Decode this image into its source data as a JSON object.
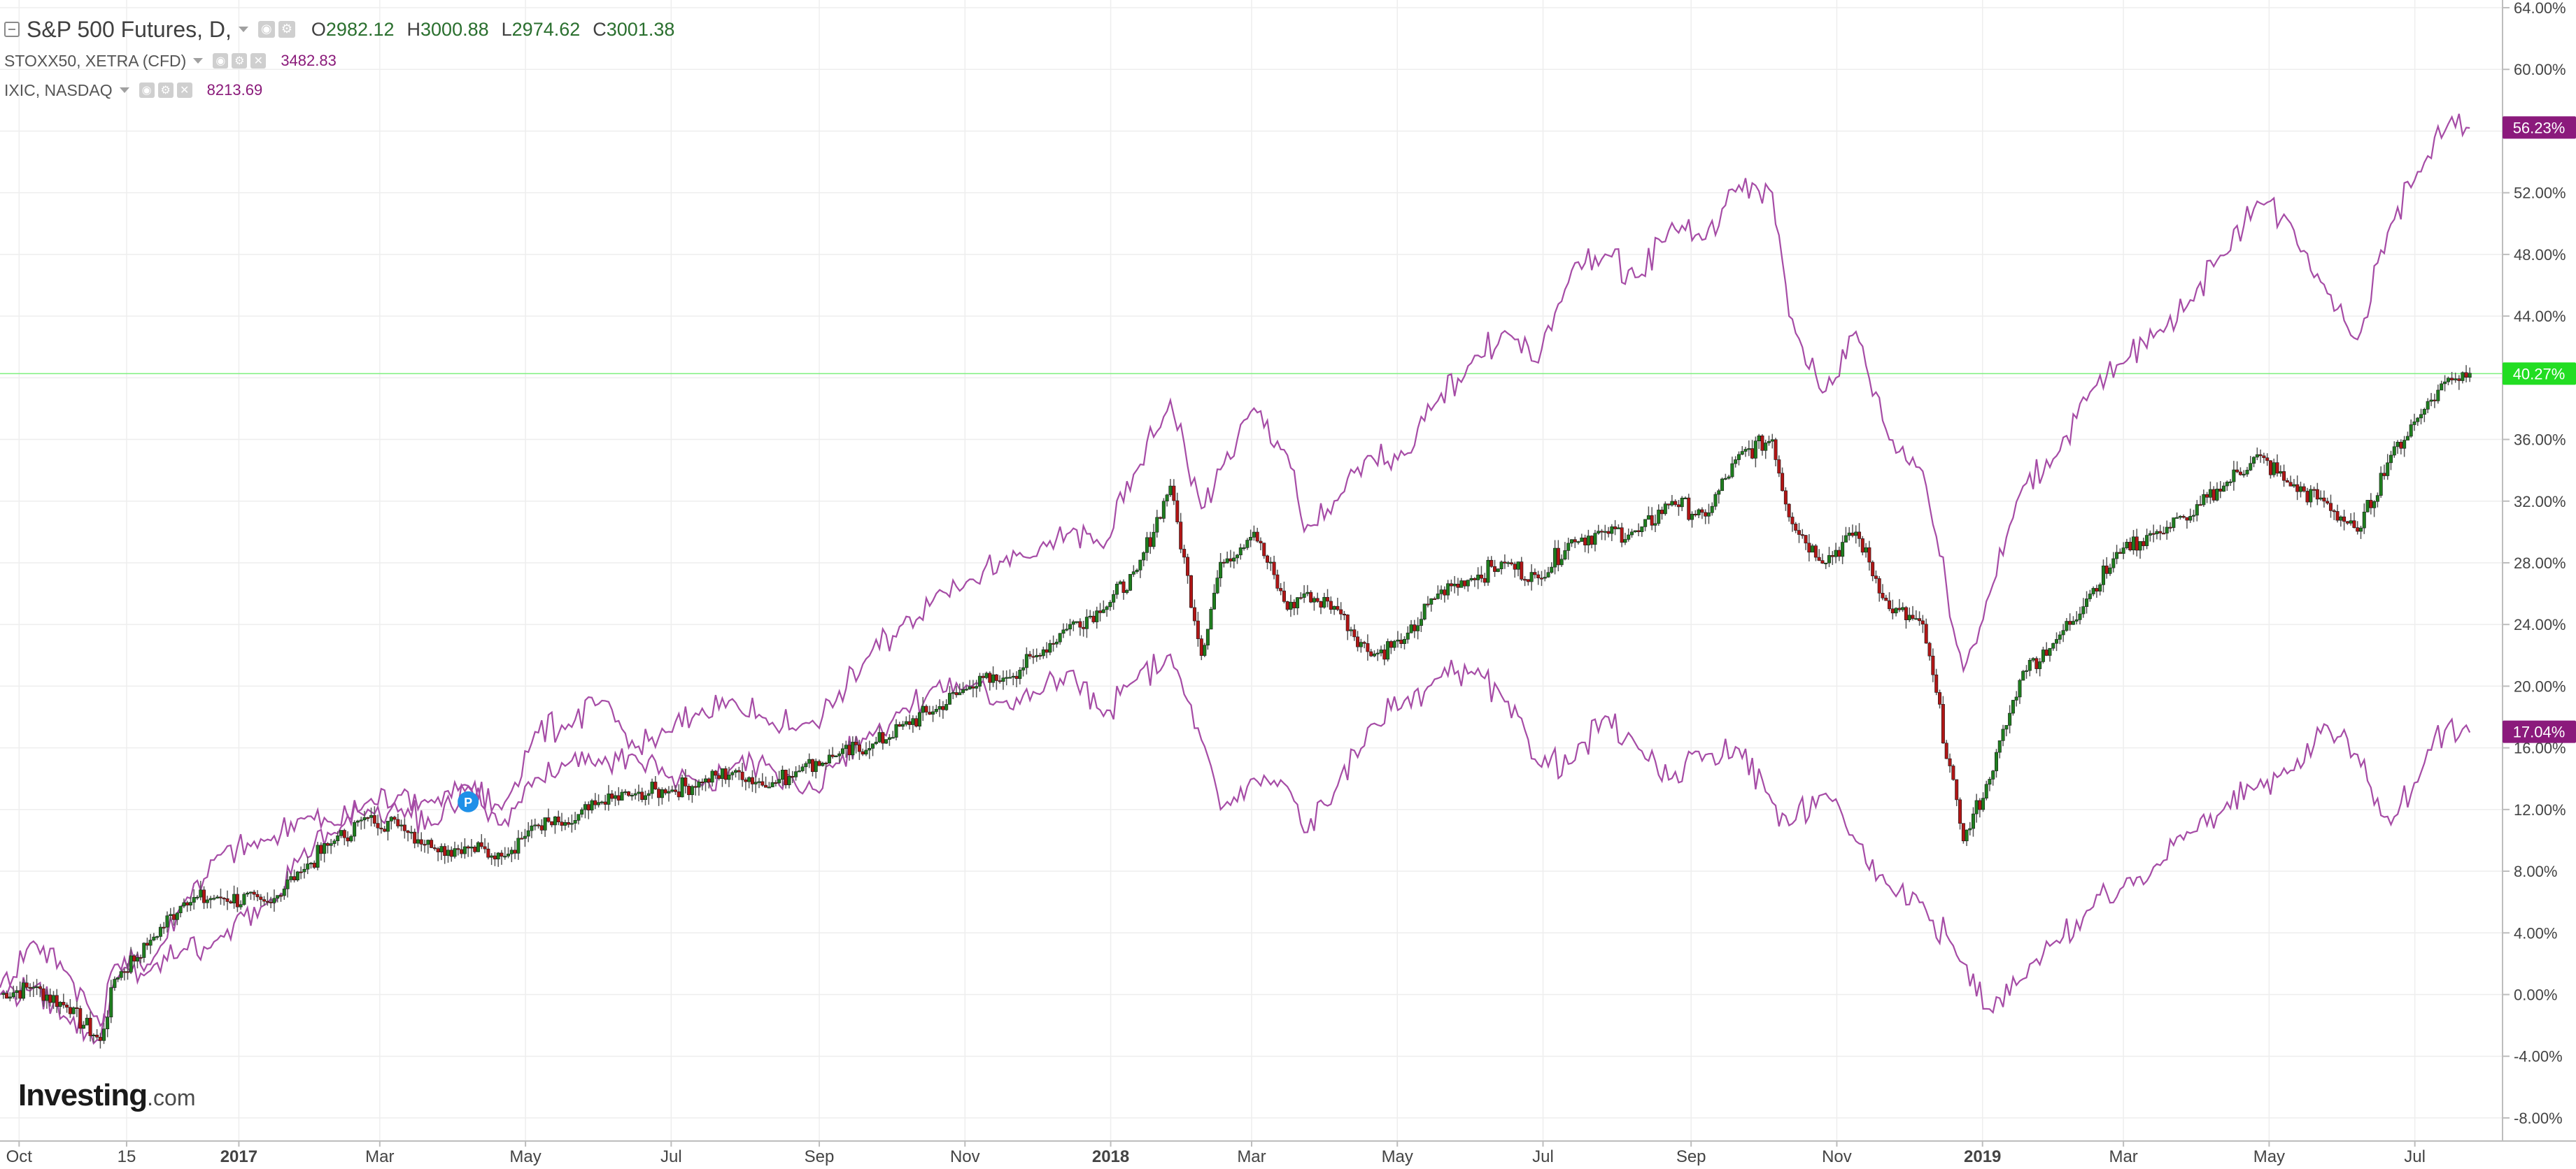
{
  "legend": {
    "main": {
      "symbol": "S&P 500 Futures, D,",
      "o_label": "O",
      "o": "2982.12",
      "h_label": "H",
      "h": "3000.88",
      "l_label": "L",
      "l": "2974.62",
      "c_label": "C",
      "c": "3001.38"
    },
    "compare": [
      {
        "symbol": "STOXX50, XETRA (CFD)",
        "value": "3482.83"
      },
      {
        "symbol": "IXIC, NASDAQ",
        "value": "8213.69"
      }
    ]
  },
  "logo": {
    "brand": "Investing",
    "domain": ".com"
  },
  "colors": {
    "up": "#1e7d1e",
    "down": "#b01515",
    "wick": "#555555",
    "compare_line": "#a64ca6",
    "current_line": "#7ef07e",
    "badge_green": "#22dd22",
    "badge_purple": "#8b1a7c",
    "grid": "#eeeeee",
    "axis_text": "#444444"
  },
  "chart_data": {
    "type": "line",
    "title": "S&P 500 Futures, D,",
    "y_unit": "%",
    "ylim": [
      -9.5,
      64.5
    ],
    "y_ticks": [
      "64.00%",
      "60.00%",
      "56.00%",
      "52.00%",
      "48.00%",
      "44.00%",
      "40.00%",
      "36.00%",
      "32.00%",
      "28.00%",
      "24.00%",
      "20.00%",
      "16.00%",
      "12.00%",
      "8.00%",
      "4.00%",
      "0.00%",
      "-4.00%",
      "-8.00%"
    ],
    "x_range": [
      "2016-09-23",
      "2019-07-26"
    ],
    "x_ticks": [
      {
        "date": "2016-10-01",
        "label": "Oct",
        "bold": false
      },
      {
        "date": "2016-11-15",
        "label": "15",
        "bold": false
      },
      {
        "date": "2017-01-01",
        "label": "2017",
        "bold": true
      },
      {
        "date": "2017-03-01",
        "label": "Mar",
        "bold": false
      },
      {
        "date": "2017-05-01",
        "label": "May",
        "bold": false
      },
      {
        "date": "2017-07-01",
        "label": "Jul",
        "bold": false
      },
      {
        "date": "2017-09-01",
        "label": "Sep",
        "bold": false
      },
      {
        "date": "2017-11-01",
        "label": "Nov",
        "bold": false
      },
      {
        "date": "2018-01-01",
        "label": "2018",
        "bold": true
      },
      {
        "date": "2018-03-01",
        "label": "Mar",
        "bold": false
      },
      {
        "date": "2018-05-01",
        "label": "May",
        "bold": false
      },
      {
        "date": "2018-07-01",
        "label": "Jul",
        "bold": false
      },
      {
        "date": "2018-09-01",
        "label": "Sep",
        "bold": false
      },
      {
        "date": "2018-11-01",
        "label": "Nov",
        "bold": false
      },
      {
        "date": "2019-01-01",
        "label": "2019",
        "bold": true
      },
      {
        "date": "2019-03-01",
        "label": "Mar",
        "bold": false
      },
      {
        "date": "2019-05-01",
        "label": "May",
        "bold": false
      },
      {
        "date": "2019-07-01",
        "label": "Jul",
        "bold": false
      }
    ],
    "grid": true,
    "current_line": {
      "value": 40.27,
      "label": "40.27%"
    },
    "badges": [
      {
        "label": "56.23%",
        "value": 56.23,
        "color": "#8b1a7c"
      },
      {
        "label": "40.27%",
        "value": 40.27,
        "color": "#22dd22"
      },
      {
        "label": "17.04%",
        "value": 17.04,
        "color": "#8b1a7c"
      }
    ],
    "marker": {
      "label": "P",
      "date": "2017-04-07",
      "value": 12.5
    },
    "series": [
      {
        "name": "S&P 500 Futures",
        "kind": "candlestick",
        "x": [
          "2016-09-23",
          "2016-10-07",
          "2016-10-21",
          "2016-11-04",
          "2016-11-10",
          "2016-11-25",
          "2016-12-09",
          "2016-12-23",
          "2017-01-13",
          "2017-01-27",
          "2017-02-10",
          "2017-02-24",
          "2017-03-10",
          "2017-03-24",
          "2017-04-07",
          "2017-04-21",
          "2017-05-05",
          "2017-05-19",
          "2017-06-02",
          "2017-06-16",
          "2017-06-30",
          "2017-07-14",
          "2017-07-28",
          "2017-08-11",
          "2017-08-25",
          "2017-09-08",
          "2017-09-22",
          "2017-10-06",
          "2017-10-20",
          "2017-11-03",
          "2017-11-17",
          "2017-12-01",
          "2017-12-15",
          "2017-12-29",
          "2018-01-12",
          "2018-01-26",
          "2018-02-08",
          "2018-02-16",
          "2018-03-02",
          "2018-03-16",
          "2018-03-23",
          "2018-04-06",
          "2018-04-20",
          "2018-05-04",
          "2018-05-18",
          "2018-06-01",
          "2018-06-15",
          "2018-06-29",
          "2018-07-13",
          "2018-07-27",
          "2018-08-10",
          "2018-08-24",
          "2018-09-07",
          "2018-09-21",
          "2018-10-05",
          "2018-10-12",
          "2018-10-26",
          "2018-11-09",
          "2018-11-23",
          "2018-12-07",
          "2018-12-24",
          "2019-01-04",
          "2019-01-18",
          "2019-02-01",
          "2019-02-15",
          "2019-03-01",
          "2019-03-15",
          "2019-03-29",
          "2019-04-12",
          "2019-04-26",
          "2019-05-10",
          "2019-05-24",
          "2019-06-07",
          "2019-06-21",
          "2019-07-05",
          "2019-07-15",
          "2019-07-24"
        ],
        "values": [
          0.0,
          0.5,
          -0.8,
          -3.0,
          1.0,
          3.5,
          6.0,
          6.3,
          6.0,
          8.0,
          10.0,
          11.5,
          11.0,
          9.5,
          9.5,
          9.0,
          11.0,
          11.0,
          12.5,
          13.0,
          13.2,
          13.8,
          14.5,
          13.5,
          14.8,
          15.5,
          16.0,
          17.5,
          18.5,
          20.0,
          20.5,
          22.0,
          24.0,
          25.0,
          27.5,
          33.0,
          22.0,
          28.0,
          30.0,
          25.0,
          26.0,
          25.0,
          22.0,
          23.0,
          26.0,
          27.0,
          28.0,
          27.0,
          29.5,
          30.0,
          30.0,
          32.0,
          31.0,
          35.0,
          36.0,
          31.0,
          28.0,
          30.0,
          25.0,
          24.0,
          10.0,
          14.0,
          21.0,
          23.0,
          26.0,
          29.0,
          30.0,
          31.0,
          33.0,
          35.0,
          33.0,
          32.0,
          30.0,
          35.0,
          38.0,
          40.0,
          40.3
        ]
      },
      {
        "name": "STOXX50, XETRA (CFD)",
        "kind": "line",
        "x": [
          "2016-09-23",
          "2016-10-07",
          "2016-10-21",
          "2016-11-04",
          "2016-11-10",
          "2016-11-25",
          "2016-12-09",
          "2016-12-23",
          "2017-01-13",
          "2017-01-27",
          "2017-02-10",
          "2017-02-24",
          "2017-03-10",
          "2017-03-24",
          "2017-04-07",
          "2017-04-21",
          "2017-05-05",
          "2017-05-19",
          "2017-06-02",
          "2017-06-16",
          "2017-06-30",
          "2017-07-14",
          "2017-07-28",
          "2017-08-11",
          "2017-08-25",
          "2017-09-08",
          "2017-09-22",
          "2017-10-06",
          "2017-10-20",
          "2017-11-03",
          "2017-11-17",
          "2017-12-01",
          "2017-12-15",
          "2017-12-29",
          "2018-01-12",
          "2018-01-26",
          "2018-02-08",
          "2018-02-16",
          "2018-03-02",
          "2018-03-16",
          "2018-03-23",
          "2018-04-06",
          "2018-04-20",
          "2018-05-04",
          "2018-05-18",
          "2018-06-01",
          "2018-06-15",
          "2018-06-29",
          "2018-07-13",
          "2018-07-27",
          "2018-08-10",
          "2018-08-24",
          "2018-09-07",
          "2018-09-21",
          "2018-10-05",
          "2018-10-12",
          "2018-10-26",
          "2018-11-09",
          "2018-11-23",
          "2018-12-07",
          "2018-12-24",
          "2019-01-04",
          "2019-01-18",
          "2019-02-01",
          "2019-02-15",
          "2019-03-01",
          "2019-03-15",
          "2019-03-29",
          "2019-04-12",
          "2019-04-26",
          "2019-05-10",
          "2019-05-24",
          "2019-06-07",
          "2019-06-21",
          "2019-07-05",
          "2019-07-15",
          "2019-07-24"
        ],
        "values": [
          0.5,
          3.5,
          1.5,
          -2.0,
          2.0,
          2.0,
          6.0,
          9.0,
          10.0,
          11.5,
          11.0,
          12.5,
          13.0,
          12.5,
          13.5,
          11.0,
          14.0,
          15.0,
          15.0,
          15.5,
          14.0,
          13.5,
          15.0,
          15.0,
          13.0,
          15.0,
          17.0,
          18.5,
          20.0,
          20.0,
          19.0,
          19.5,
          21.0,
          18.0,
          20.5,
          22.0,
          16.5,
          12.0,
          14.0,
          13.5,
          10.5,
          13.5,
          17.5,
          19.0,
          20.5,
          21.0,
          19.0,
          15.0,
          15.0,
          18.0,
          16.0,
          14.0,
          15.5,
          16.0,
          12.5,
          11.0,
          13.0,
          10.0,
          7.0,
          6.0,
          2.0,
          -1.0,
          1.0,
          3.5,
          5.5,
          7.0,
          8.5,
          10.5,
          12.0,
          13.5,
          14.5,
          17.5,
          15.5,
          11.0,
          15.0,
          17.5,
          17.0
        ]
      },
      {
        "name": "IXIC, NASDAQ",
        "kind": "line",
        "x": [
          "2016-09-23",
          "2016-10-07",
          "2016-10-21",
          "2016-11-04",
          "2016-11-10",
          "2016-11-25",
          "2016-12-09",
          "2016-12-23",
          "2017-01-13",
          "2017-01-27",
          "2017-02-10",
          "2017-02-24",
          "2017-03-10",
          "2017-03-24",
          "2017-04-07",
          "2017-04-21",
          "2017-05-05",
          "2017-05-19",
          "2017-06-02",
          "2017-06-16",
          "2017-06-30",
          "2017-07-14",
          "2017-07-28",
          "2017-08-11",
          "2017-08-25",
          "2017-09-08",
          "2017-09-22",
          "2017-10-06",
          "2017-10-20",
          "2017-11-03",
          "2017-11-17",
          "2017-12-01",
          "2017-12-15",
          "2017-12-29",
          "2018-01-12",
          "2018-01-26",
          "2018-02-08",
          "2018-02-16",
          "2018-03-02",
          "2018-03-16",
          "2018-03-23",
          "2018-04-06",
          "2018-04-20",
          "2018-05-04",
          "2018-05-18",
          "2018-06-01",
          "2018-06-15",
          "2018-06-29",
          "2018-07-13",
          "2018-07-27",
          "2018-08-10",
          "2018-08-24",
          "2018-09-07",
          "2018-09-21",
          "2018-10-05",
          "2018-10-12",
          "2018-10-26",
          "2018-11-09",
          "2018-11-23",
          "2018-12-07",
          "2018-12-24",
          "2019-01-04",
          "2019-01-18",
          "2019-02-01",
          "2019-02-15",
          "2019-03-01",
          "2019-03-15",
          "2019-03-29",
          "2019-04-12",
          "2019-04-26",
          "2019-05-10",
          "2019-05-24",
          "2019-06-07",
          "2019-06-21",
          "2019-07-05",
          "2019-07-15",
          "2019-07-24"
        ],
        "values": [
          0.0,
          0.5,
          -1.5,
          -3.0,
          1.0,
          1.5,
          3.0,
          3.5,
          6.0,
          9.0,
          10.5,
          12.0,
          12.0,
          11.0,
          13.5,
          12.0,
          17.0,
          17.5,
          19.0,
          16.0,
          17.0,
          18.5,
          19.0,
          17.5,
          17.5,
          19.0,
          22.0,
          24.0,
          26.0,
          27.0,
          28.0,
          28.5,
          30.0,
          29.0,
          34.0,
          38.5,
          31.5,
          34.0,
          38.0,
          35.0,
          30.0,
          32.0,
          35.0,
          35.0,
          38.5,
          41.0,
          43.0,
          41.0,
          47.0,
          48.0,
          46.5,
          50.0,
          49.0,
          52.5,
          52.0,
          44.0,
          39.0,
          43.0,
          36.0,
          34.0,
          21.0,
          26.0,
          33.0,
          35.0,
          39.0,
          41.0,
          43.0,
          45.0,
          48.0,
          51.5,
          50.0,
          46.0,
          42.5,
          50.0,
          54.0,
          56.5,
          56.2
        ]
      }
    ]
  }
}
